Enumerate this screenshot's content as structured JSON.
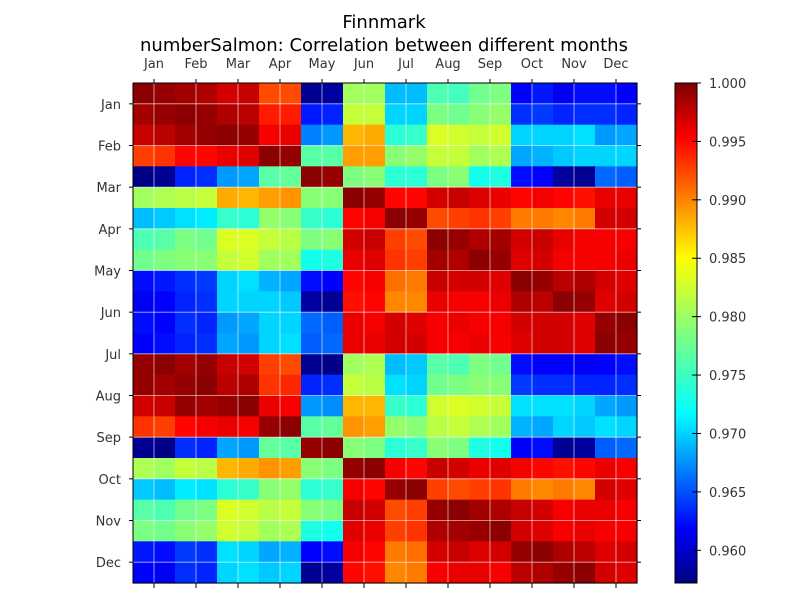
{
  "chart_data": {
    "type": "heatmap",
    "title": "Finnmark",
    "subtitle": "numberSalmon: Correlation between different months",
    "xlabel": "",
    "ylabel": "",
    "categories_x": [
      "Jan",
      "Feb",
      "Mar",
      "Apr",
      "May",
      "Jun",
      "Jul",
      "Aug",
      "Sep",
      "Oct",
      "Nov",
      "Dec"
    ],
    "categories_y": [
      "Jan",
      "Feb",
      "Mar",
      "Apr",
      "May",
      "Jun",
      "Jul",
      "Aug",
      "Sep",
      "Oct",
      "Nov",
      "Dec"
    ],
    "fine_grid": [
      [
        0.9995,
        0.999,
        0.9985,
        0.998,
        0.9965,
        0.997,
        0.9915,
        0.9915,
        0.958,
        0.9585,
        0.98,
        0.98,
        0.9705,
        0.9705,
        0.9765,
        0.976,
        0.978,
        0.9785,
        0.9625,
        0.9635,
        0.962,
        0.963,
        0.963,
        0.9625
      ],
      [
        0.9985,
        0.999,
        0.9995,
        0.999,
        0.998,
        0.9975,
        0.9935,
        0.9935,
        0.9635,
        0.964,
        0.9815,
        0.9815,
        0.9715,
        0.9715,
        0.9785,
        0.978,
        0.979,
        0.9795,
        0.9645,
        0.965,
        0.964,
        0.9645,
        0.9645,
        0.964
      ],
      [
        0.997,
        0.9975,
        0.9985,
        0.999,
        0.9995,
        0.999,
        0.995,
        0.9955,
        0.968,
        0.969,
        0.987,
        0.9875,
        0.975,
        0.9755,
        0.9825,
        0.982,
        0.9815,
        0.982,
        0.9715,
        0.9715,
        0.9715,
        0.972,
        0.969,
        0.9695
      ],
      [
        0.992,
        0.9925,
        0.9945,
        0.9945,
        0.9955,
        0.996,
        0.9995,
        0.999,
        0.977,
        0.977,
        0.988,
        0.988,
        0.979,
        0.9795,
        0.9815,
        0.9815,
        0.98,
        0.9805,
        0.9695,
        0.97,
        0.971,
        0.9715,
        0.9715,
        0.9715
      ],
      [
        0.9575,
        0.958,
        0.964,
        0.9645,
        0.969,
        0.9695,
        0.977,
        0.9775,
        0.9995,
        0.999,
        0.9785,
        0.979,
        0.975,
        0.975,
        0.9785,
        0.979,
        0.974,
        0.9745,
        0.963,
        0.9625,
        0.9585,
        0.958,
        0.967,
        0.9665
      ],
      [
        0.98,
        0.9805,
        0.981,
        0.9815,
        0.9875,
        0.987,
        0.988,
        0.9885,
        0.979,
        0.979,
        0.9995,
        0.999,
        0.9945,
        0.9945,
        0.9965,
        0.997,
        0.996,
        0.9955,
        0.9945,
        0.995,
        0.9945,
        0.994,
        0.9955,
        0.9955
      ],
      [
        0.9705,
        0.971,
        0.972,
        0.9725,
        0.9755,
        0.975,
        0.9795,
        0.979,
        0.9755,
        0.975,
        0.9945,
        0.995,
        0.9995,
        0.999,
        0.9915,
        0.992,
        0.9925,
        0.992,
        0.9895,
        0.9895,
        0.989,
        0.9895,
        0.9965,
        0.9965
      ],
      [
        0.9765,
        0.977,
        0.9785,
        0.978,
        0.9825,
        0.9825,
        0.9815,
        0.981,
        0.9785,
        0.979,
        0.9965,
        0.997,
        0.992,
        0.9915,
        0.9995,
        0.999,
        0.998,
        0.9985,
        0.9965,
        0.997,
        0.9955,
        0.995,
        0.995,
        0.995
      ],
      [
        0.978,
        0.9785,
        0.979,
        0.979,
        0.9815,
        0.982,
        0.98,
        0.98,
        0.974,
        0.9745,
        0.9955,
        0.996,
        0.9925,
        0.992,
        0.9985,
        0.998,
        0.9995,
        0.999,
        0.996,
        0.9965,
        0.995,
        0.995,
        0.995,
        0.9955
      ],
      [
        0.963,
        0.9635,
        0.9645,
        0.965,
        0.9715,
        0.972,
        0.97,
        0.9695,
        0.963,
        0.9625,
        0.9945,
        0.995,
        0.99,
        0.9895,
        0.997,
        0.9965,
        0.9965,
        0.996,
        0.9995,
        0.999,
        0.9975,
        0.998,
        0.9965,
        0.996
      ],
      [
        0.962,
        0.9625,
        0.964,
        0.9645,
        0.9715,
        0.9715,
        0.9715,
        0.971,
        0.9585,
        0.958,
        0.994,
        0.9945,
        0.989,
        0.989,
        0.9955,
        0.995,
        0.995,
        0.9955,
        0.998,
        0.9975,
        0.9995,
        0.999,
        0.996,
        0.9965
      ],
      [
        0.963,
        0.9625,
        0.9645,
        0.964,
        0.969,
        0.9695,
        0.9715,
        0.9715,
        0.967,
        0.9665,
        0.9955,
        0.995,
        0.9965,
        0.996,
        0.995,
        0.9955,
        0.995,
        0.995,
        0.9965,
        0.9965,
        0.9965,
        0.996,
        0.999,
        0.9995
      ],
      [
        0.9625,
        0.963,
        0.964,
        0.9645,
        0.9695,
        0.969,
        0.9715,
        0.972,
        0.9665,
        0.967,
        0.9955,
        0.9955,
        0.9965,
        0.9965,
        0.995,
        0.995,
        0.9955,
        0.995,
        0.996,
        0.9965,
        0.9965,
        0.996,
        0.9995,
        0.999
      ],
      [
        0.999,
        0.9995,
        0.9985,
        0.999,
        0.997,
        0.9965,
        0.992,
        0.9915,
        0.958,
        0.9575,
        0.98,
        0.9805,
        0.9705,
        0.971,
        0.977,
        0.9765,
        0.9785,
        0.978,
        0.963,
        0.9625,
        0.9625,
        0.962,
        0.9625,
        0.963
      ],
      [
        0.999,
        0.9985,
        0.999,
        0.9995,
        0.9975,
        0.998,
        0.9925,
        0.993,
        0.964,
        0.9645,
        0.9815,
        0.981,
        0.972,
        0.9715,
        0.978,
        0.9785,
        0.979,
        0.979,
        0.965,
        0.9645,
        0.9645,
        0.964,
        0.964,
        0.9645
      ],
      [
        0.9965,
        0.997,
        0.999,
        0.9985,
        0.999,
        0.9995,
        0.9955,
        0.995,
        0.969,
        0.9685,
        0.987,
        0.987,
        0.9755,
        0.975,
        0.982,
        0.9825,
        0.982,
        0.9815,
        0.972,
        0.972,
        0.972,
        0.9715,
        0.9695,
        0.969
      ],
      [
        0.9925,
        0.992,
        0.9945,
        0.995,
        0.9955,
        0.995,
        0.999,
        0.9995,
        0.977,
        0.9775,
        0.9885,
        0.988,
        0.9795,
        0.979,
        0.981,
        0.9815,
        0.9805,
        0.98,
        0.97,
        0.9695,
        0.9715,
        0.971,
        0.972,
        0.9715
      ],
      [
        0.958,
        0.9575,
        0.9645,
        0.964,
        0.9695,
        0.969,
        0.9775,
        0.977,
        0.999,
        0.9995,
        0.979,
        0.9785,
        0.975,
        0.9755,
        0.979,
        0.9785,
        0.9745,
        0.974,
        0.9625,
        0.963,
        0.958,
        0.9585,
        0.9665,
        0.967
      ],
      [
        0.9805,
        0.98,
        0.9815,
        0.981,
        0.987,
        0.9875,
        0.9885,
        0.988,
        0.979,
        0.9785,
        0.999,
        0.9995,
        0.995,
        0.9945,
        0.997,
        0.9965,
        0.9955,
        0.996,
        0.995,
        0.9945,
        0.994,
        0.9945,
        0.9955,
        0.995
      ],
      [
        0.971,
        0.9705,
        0.9725,
        0.972,
        0.975,
        0.9755,
        0.979,
        0.9795,
        0.975,
        0.9755,
        0.995,
        0.9945,
        0.999,
        0.9995,
        0.992,
        0.9915,
        0.992,
        0.9925,
        0.9895,
        0.989,
        0.9895,
        0.989,
        0.9965,
        0.996
      ],
      [
        0.977,
        0.9765,
        0.978,
        0.9785,
        0.9825,
        0.982,
        0.981,
        0.9815,
        0.979,
        0.9785,
        0.997,
        0.9965,
        0.9915,
        0.992,
        0.999,
        0.9995,
        0.9985,
        0.998,
        0.997,
        0.9965,
        0.995,
        0.9955,
        0.9955,
        0.995
      ],
      [
        0.9785,
        0.978,
        0.979,
        0.9795,
        0.982,
        0.9815,
        0.98,
        0.9805,
        0.9745,
        0.974,
        0.996,
        0.9955,
        0.992,
        0.9925,
        0.998,
        0.9985,
        0.999,
        0.9995,
        0.9965,
        0.996,
        0.995,
        0.9955,
        0.995,
        0.995
      ],
      [
        0.9635,
        0.963,
        0.965,
        0.9645,
        0.972,
        0.9715,
        0.9695,
        0.97,
        0.9625,
        0.963,
        0.995,
        0.9945,
        0.9895,
        0.99,
        0.9965,
        0.997,
        0.996,
        0.9965,
        0.999,
        0.9995,
        0.998,
        0.9975,
        0.996,
        0.9965
      ],
      [
        0.9625,
        0.962,
        0.9645,
        0.964,
        0.9715,
        0.972,
        0.971,
        0.9715,
        0.958,
        0.9585,
        0.9945,
        0.994,
        0.989,
        0.9895,
        0.995,
        0.9955,
        0.9955,
        0.995,
        0.9975,
        0.998,
        0.999,
        0.9995,
        0.9965,
        0.996
      ]
    ],
    "colorbar": {
      "min": 0.9572,
      "max": 1.0,
      "ticks": [
        "0.960",
        "0.965",
        "0.970",
        "0.975",
        "0.980",
        "0.985",
        "0.990",
        "0.995",
        "1.000"
      ],
      "tick_values": [
        0.96,
        0.965,
        0.97,
        0.975,
        0.98,
        0.985,
        0.99,
        0.995,
        1.0
      ],
      "colormap": "jet"
    },
    "grid": true,
    "x_ticks_position": "top-and-bottom",
    "legend": "colorbar-right"
  }
}
